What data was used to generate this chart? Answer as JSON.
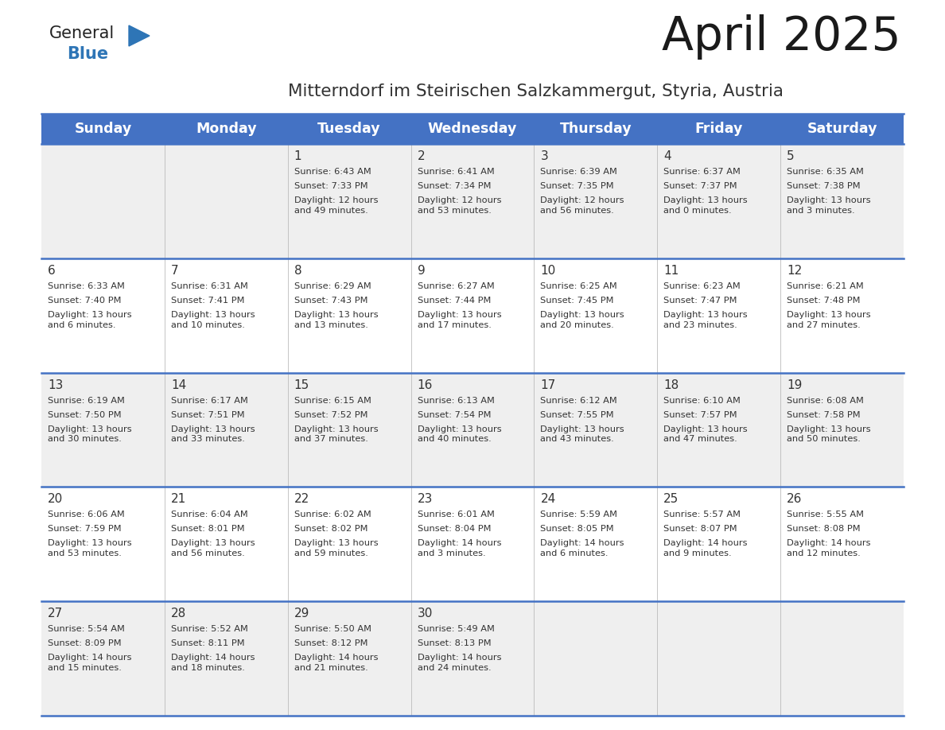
{
  "title": "April 2025",
  "subtitle": "Mitterndorf im Steirischen Salzkammergut, Styria, Austria",
  "header_bg_color": "#4472C4",
  "header_text_color": "#FFFFFF",
  "header_days": [
    "Sunday",
    "Monday",
    "Tuesday",
    "Wednesday",
    "Thursday",
    "Friday",
    "Saturday"
  ],
  "row_bg_even": "#EFEFEF",
  "row_bg_odd": "#FFFFFF",
  "cell_text_color": "#333333",
  "divider_color": "#4472C4",
  "logo_general_color": "#222222",
  "logo_blue_color": "#2E75B6",
  "weeks": [
    {
      "days": [
        {
          "date": "",
          "sunrise": "",
          "sunset": "",
          "daylight": ""
        },
        {
          "date": "",
          "sunrise": "",
          "sunset": "",
          "daylight": ""
        },
        {
          "date": "1",
          "sunrise": "Sunrise: 6:43 AM",
          "sunset": "Sunset: 7:33 PM",
          "daylight": "Daylight: 12 hours\nand 49 minutes."
        },
        {
          "date": "2",
          "sunrise": "Sunrise: 6:41 AM",
          "sunset": "Sunset: 7:34 PM",
          "daylight": "Daylight: 12 hours\nand 53 minutes."
        },
        {
          "date": "3",
          "sunrise": "Sunrise: 6:39 AM",
          "sunset": "Sunset: 7:35 PM",
          "daylight": "Daylight: 12 hours\nand 56 minutes."
        },
        {
          "date": "4",
          "sunrise": "Sunrise: 6:37 AM",
          "sunset": "Sunset: 7:37 PM",
          "daylight": "Daylight: 13 hours\nand 0 minutes."
        },
        {
          "date": "5",
          "sunrise": "Sunrise: 6:35 AM",
          "sunset": "Sunset: 7:38 PM",
          "daylight": "Daylight: 13 hours\nand 3 minutes."
        }
      ]
    },
    {
      "days": [
        {
          "date": "6",
          "sunrise": "Sunrise: 6:33 AM",
          "sunset": "Sunset: 7:40 PM",
          "daylight": "Daylight: 13 hours\nand 6 minutes."
        },
        {
          "date": "7",
          "sunrise": "Sunrise: 6:31 AM",
          "sunset": "Sunset: 7:41 PM",
          "daylight": "Daylight: 13 hours\nand 10 minutes."
        },
        {
          "date": "8",
          "sunrise": "Sunrise: 6:29 AM",
          "sunset": "Sunset: 7:43 PM",
          "daylight": "Daylight: 13 hours\nand 13 minutes."
        },
        {
          "date": "9",
          "sunrise": "Sunrise: 6:27 AM",
          "sunset": "Sunset: 7:44 PM",
          "daylight": "Daylight: 13 hours\nand 17 minutes."
        },
        {
          "date": "10",
          "sunrise": "Sunrise: 6:25 AM",
          "sunset": "Sunset: 7:45 PM",
          "daylight": "Daylight: 13 hours\nand 20 minutes."
        },
        {
          "date": "11",
          "sunrise": "Sunrise: 6:23 AM",
          "sunset": "Sunset: 7:47 PM",
          "daylight": "Daylight: 13 hours\nand 23 minutes."
        },
        {
          "date": "12",
          "sunrise": "Sunrise: 6:21 AM",
          "sunset": "Sunset: 7:48 PM",
          "daylight": "Daylight: 13 hours\nand 27 minutes."
        }
      ]
    },
    {
      "days": [
        {
          "date": "13",
          "sunrise": "Sunrise: 6:19 AM",
          "sunset": "Sunset: 7:50 PM",
          "daylight": "Daylight: 13 hours\nand 30 minutes."
        },
        {
          "date": "14",
          "sunrise": "Sunrise: 6:17 AM",
          "sunset": "Sunset: 7:51 PM",
          "daylight": "Daylight: 13 hours\nand 33 minutes."
        },
        {
          "date": "15",
          "sunrise": "Sunrise: 6:15 AM",
          "sunset": "Sunset: 7:52 PM",
          "daylight": "Daylight: 13 hours\nand 37 minutes."
        },
        {
          "date": "16",
          "sunrise": "Sunrise: 6:13 AM",
          "sunset": "Sunset: 7:54 PM",
          "daylight": "Daylight: 13 hours\nand 40 minutes."
        },
        {
          "date": "17",
          "sunrise": "Sunrise: 6:12 AM",
          "sunset": "Sunset: 7:55 PM",
          "daylight": "Daylight: 13 hours\nand 43 minutes."
        },
        {
          "date": "18",
          "sunrise": "Sunrise: 6:10 AM",
          "sunset": "Sunset: 7:57 PM",
          "daylight": "Daylight: 13 hours\nand 47 minutes."
        },
        {
          "date": "19",
          "sunrise": "Sunrise: 6:08 AM",
          "sunset": "Sunset: 7:58 PM",
          "daylight": "Daylight: 13 hours\nand 50 minutes."
        }
      ]
    },
    {
      "days": [
        {
          "date": "20",
          "sunrise": "Sunrise: 6:06 AM",
          "sunset": "Sunset: 7:59 PM",
          "daylight": "Daylight: 13 hours\nand 53 minutes."
        },
        {
          "date": "21",
          "sunrise": "Sunrise: 6:04 AM",
          "sunset": "Sunset: 8:01 PM",
          "daylight": "Daylight: 13 hours\nand 56 minutes."
        },
        {
          "date": "22",
          "sunrise": "Sunrise: 6:02 AM",
          "sunset": "Sunset: 8:02 PM",
          "daylight": "Daylight: 13 hours\nand 59 minutes."
        },
        {
          "date": "23",
          "sunrise": "Sunrise: 6:01 AM",
          "sunset": "Sunset: 8:04 PM",
          "daylight": "Daylight: 14 hours\nand 3 minutes."
        },
        {
          "date": "24",
          "sunrise": "Sunrise: 5:59 AM",
          "sunset": "Sunset: 8:05 PM",
          "daylight": "Daylight: 14 hours\nand 6 minutes."
        },
        {
          "date": "25",
          "sunrise": "Sunrise: 5:57 AM",
          "sunset": "Sunset: 8:07 PM",
          "daylight": "Daylight: 14 hours\nand 9 minutes."
        },
        {
          "date": "26",
          "sunrise": "Sunrise: 5:55 AM",
          "sunset": "Sunset: 8:08 PM",
          "daylight": "Daylight: 14 hours\nand 12 minutes."
        }
      ]
    },
    {
      "days": [
        {
          "date": "27",
          "sunrise": "Sunrise: 5:54 AM",
          "sunset": "Sunset: 8:09 PM",
          "daylight": "Daylight: 14 hours\nand 15 minutes."
        },
        {
          "date": "28",
          "sunrise": "Sunrise: 5:52 AM",
          "sunset": "Sunset: 8:11 PM",
          "daylight": "Daylight: 14 hours\nand 18 minutes."
        },
        {
          "date": "29",
          "sunrise": "Sunrise: 5:50 AM",
          "sunset": "Sunset: 8:12 PM",
          "daylight": "Daylight: 14 hours\nand 21 minutes."
        },
        {
          "date": "30",
          "sunrise": "Sunrise: 5:49 AM",
          "sunset": "Sunset: 8:13 PM",
          "daylight": "Daylight: 14 hours\nand 24 minutes."
        },
        {
          "date": "",
          "sunrise": "",
          "sunset": "",
          "daylight": ""
        },
        {
          "date": "",
          "sunrise": "",
          "sunset": "",
          "daylight": ""
        },
        {
          "date": "",
          "sunrise": "",
          "sunset": "",
          "daylight": ""
        }
      ]
    }
  ]
}
